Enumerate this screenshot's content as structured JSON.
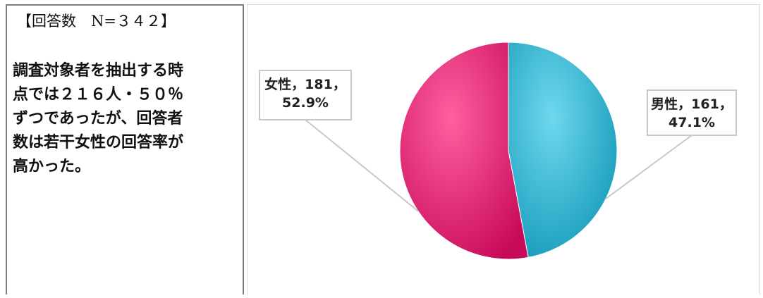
{
  "header": "【回答数　N=３４２】",
  "description_lines": [
    "調査対象者を抽出する時",
    "点では２１６人・５０％",
    "ずつであったが、回答者",
    "数は若干女性の回答率が",
    "高かった。"
  ],
  "chart_data": {
    "type": "pie",
    "slices": [
      {
        "name": "男性",
        "value": 161,
        "percent": "47.1%",
        "label_line1": "男性，161，",
        "label_line2": "47.1%",
        "color": "#1fb0cf"
      },
      {
        "name": "女性",
        "value": 181,
        "percent": "52.9%",
        "label_line1": "女性，181，",
        "label_line2": "52.9%",
        "color": "#e8126e"
      }
    ]
  }
}
